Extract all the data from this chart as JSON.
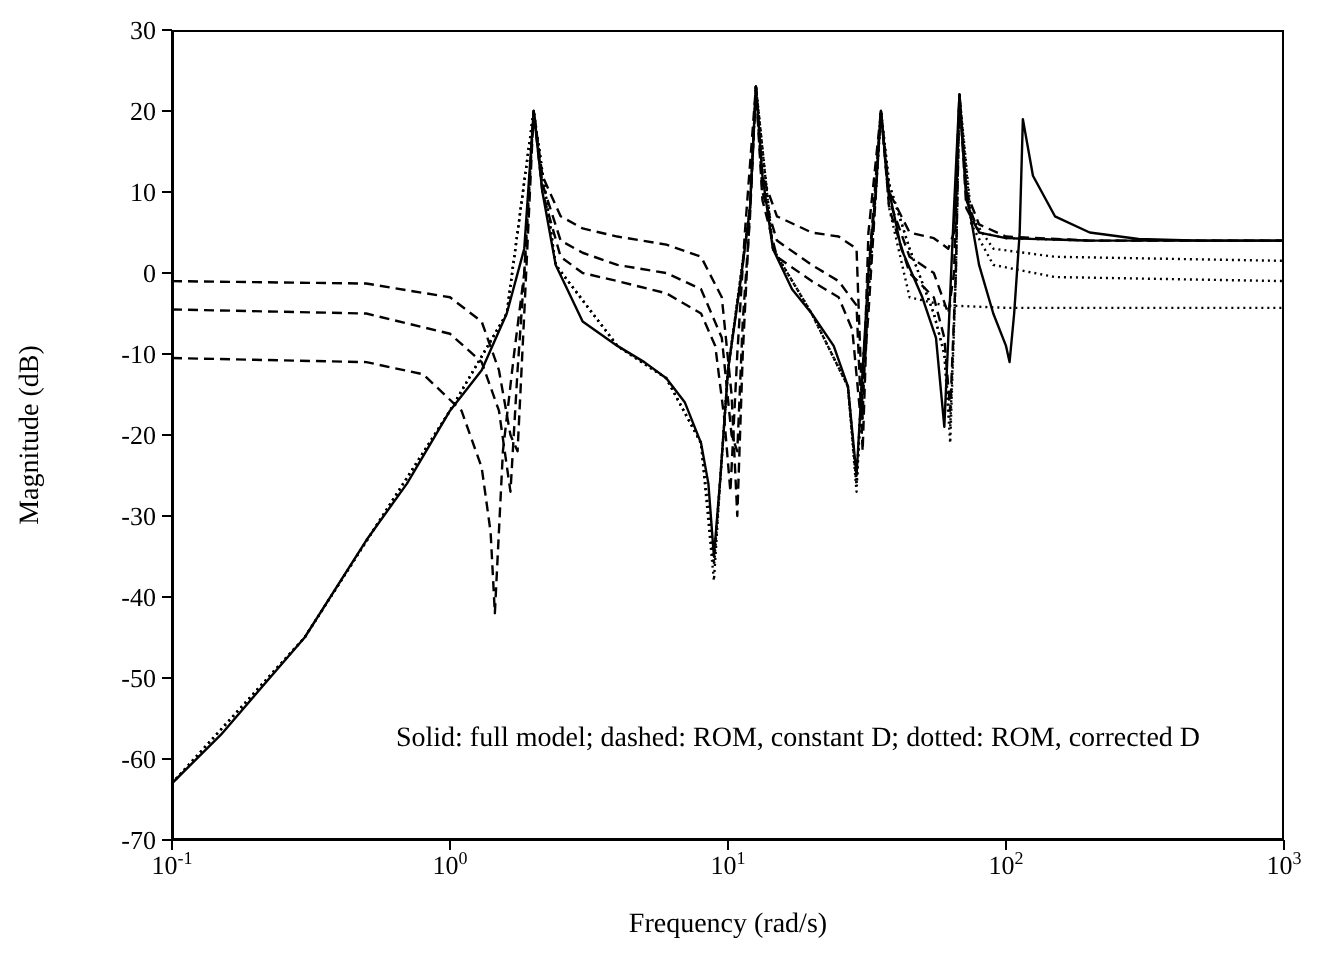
{
  "chart_data": {
    "type": "line",
    "xlabel": "Frequency (rad/s)",
    "ylabel": "Magnitude (dB)",
    "log": "x",
    "xlim": [
      0.1,
      1000
    ],
    "xticks": [
      {
        "value": 0.1,
        "label": "10$^{-1}$"
      },
      {
        "value": 1,
        "label": "10$^{0}$"
      },
      {
        "value": 10,
        "label": "10$^{1}$"
      },
      {
        "value": 100,
        "label": "10$^{2}$"
      },
      {
        "value": 1000,
        "label": "10$^{3}$"
      }
    ],
    "ylim": [
      -70,
      30
    ],
    "yticks": [
      -70,
      -60,
      -50,
      -40,
      -30,
      -20,
      -10,
      0,
      10,
      20,
      30
    ],
    "grid": false,
    "marker": "none",
    "annotations": [
      "Solid: full model; dashed: ROM, constant D; dotted: ROM, corrected D"
    ],
    "series": [
      {
        "line_style": "solid",
        "color": "#000000",
        "x": [
          0.1,
          0.15,
          0.2,
          0.3,
          0.5,
          0.7,
          1,
          1.3,
          1.6,
          1.85,
          2.0,
          2.15,
          2.4,
          3,
          4,
          5,
          6,
          7,
          8,
          8.5,
          8.9,
          9.4,
          10,
          11,
          12,
          12.6,
          13.3,
          14.5,
          17,
          20,
          24,
          27,
          29,
          30.5,
          32,
          34,
          35.5,
          37.5,
          42,
          50,
          56,
          60,
          62,
          65,
          68,
          72,
          80,
          90,
          100,
          103,
          107,
          112,
          115,
          125,
          150,
          200,
          300,
          500,
          1000
        ],
        "values": [
          -63,
          -57,
          -52,
          -45,
          -33,
          -26,
          -17,
          -12,
          -5,
          3,
          20,
          10,
          1,
          -6,
          -9,
          -11,
          -13,
          -16,
          -21,
          -26,
          -35,
          -25,
          -12,
          -2,
          8,
          23,
          12,
          3,
          -2,
          -5,
          -9,
          -14,
          -25,
          -12,
          0,
          10,
          20,
          11,
          3,
          -3,
          -8,
          -19,
          -8,
          8,
          22,
          10,
          1,
          -5,
          -9,
          -11,
          -5,
          5,
          19,
          12,
          7,
          5,
          4.2,
          4,
          4
        ]
      },
      {
        "line_style": "dashed",
        "color": "#000000",
        "x": [
          0.1,
          0.5,
          1,
          1.3,
          1.5,
          1.65,
          1.75,
          1.85,
          2.0,
          2.15,
          2.5,
          3,
          4,
          6,
          8,
          9.5,
          10.3,
          10.8,
          11.3,
          12,
          12.6,
          13.3,
          15,
          20,
          25,
          29,
          30.5,
          32,
          35.5,
          38,
          45,
          55,
          62,
          65,
          68,
          72,
          80,
          100,
          200,
          1000
        ],
        "values": [
          -1,
          -1.3,
          -3,
          -6,
          -12,
          -20,
          -22,
          -5,
          20,
          12,
          7,
          5.5,
          4.5,
          3.5,
          2,
          -3,
          -15,
          -30,
          -10,
          8,
          23,
          12,
          7,
          5,
          4.5,
          3,
          -18,
          5,
          20,
          10,
          5,
          4.3,
          3,
          5,
          22,
          10,
          6,
          4.5,
          4,
          4
        ]
      },
      {
        "line_style": "dashed",
        "color": "#000000",
        "x": [
          0.1,
          0.5,
          1,
          1.3,
          1.5,
          1.65,
          1.75,
          1.85,
          2.0,
          2.15,
          2.5,
          3,
          4,
          6,
          8,
          9.5,
          10.3,
          10.8,
          11.3,
          12,
          12.6,
          13.3,
          15,
          20,
          25,
          29,
          30.5,
          32,
          35.5,
          38,
          45,
          55,
          62,
          65,
          68,
          72,
          80,
          100,
          200,
          1000
        ],
        "values": [
          -4.5,
          -5,
          -7.5,
          -11,
          -17,
          -27,
          -12,
          0,
          20,
          11,
          4,
          2.5,
          1,
          0,
          -2,
          -8,
          -20,
          -22,
          -6,
          7,
          23,
          10,
          4,
          1,
          -1,
          -4,
          -22,
          0,
          20,
          9,
          2,
          0,
          -5,
          0,
          22,
          9,
          5,
          4.3,
          4,
          4
        ]
      },
      {
        "line_style": "dashed",
        "color": "#000000",
        "x": [
          0.1,
          0.5,
          0.8,
          1.1,
          1.3,
          1.4,
          1.45,
          1.55,
          1.7,
          1.85,
          2.0,
          2.15,
          2.5,
          3,
          4,
          6,
          8,
          9,
          9.7,
          10.2,
          10.8,
          11.5,
          12.6,
          13.3,
          15,
          20,
          25,
          28,
          30,
          32,
          35.5,
          38,
          45,
          55,
          60,
          63,
          66,
          68,
          72,
          80,
          100,
          200,
          1000
        ],
        "values": [
          -10.5,
          -11,
          -12.5,
          -17,
          -24,
          -32,
          -42,
          -22,
          -10,
          0,
          20,
          10,
          2,
          0,
          -1,
          -2.5,
          -5,
          -9,
          -18,
          -27,
          -10,
          5,
          23,
          9,
          2,
          -1,
          -3,
          -7,
          -18,
          -5,
          20,
          8,
          0,
          -3,
          -8,
          -17,
          0,
          22,
          8,
          5,
          4.3,
          4,
          4
        ]
      },
      {
        "line_style": "dotted",
        "color": "#000000",
        "x": [
          0.1,
          0.3,
          1,
          1.6,
          2.0,
          2.4,
          4,
          6,
          8,
          8.9,
          9.4,
          10,
          12,
          12.6,
          14.5,
          20,
          27,
          29,
          30.5,
          34,
          35.5,
          38,
          45,
          60,
          100,
          1000
        ],
        "values": [
          -63,
          -45,
          -17,
          -5,
          20,
          1,
          -9,
          -13,
          -21,
          -38,
          -25,
          -12,
          8,
          23,
          3,
          -5,
          -14,
          -27,
          -12,
          10,
          20,
          8,
          -3,
          -4,
          -4.3,
          -4.3
        ]
      },
      {
        "line_style": "dotted",
        "color": "#000000",
        "x": [
          0.1,
          0.3,
          1,
          1.6,
          2.0,
          2.4,
          4,
          6,
          8,
          8.9,
          9.4,
          10,
          12,
          12.6,
          14.5,
          20,
          27,
          29,
          30.5,
          34,
          35.5,
          38,
          45,
          55,
          60,
          63,
          66,
          68,
          75,
          90,
          150,
          1000
        ],
        "values": [
          -63,
          -45,
          -17,
          -5,
          20,
          1,
          -9,
          -13,
          -21,
          -36,
          -25,
          -12,
          8,
          23,
          3,
          -5,
          -14,
          -26,
          -12,
          10,
          20,
          11,
          3,
          -5,
          -10,
          -21,
          0,
          22,
          6,
          1,
          -0.5,
          -1
        ]
      },
      {
        "line_style": "dotted",
        "color": "#000000",
        "x": [
          0.1,
          0.3,
          1,
          1.6,
          2.0,
          2.4,
          4,
          6,
          8,
          8.9,
          9.4,
          10,
          12,
          12.6,
          14.5,
          20,
          27,
          29,
          30.5,
          34,
          35.5,
          38,
          45,
          55,
          60,
          63,
          66,
          68,
          75,
          90,
          150,
          1000
        ],
        "values": [
          -63,
          -45,
          -17,
          -5,
          20,
          1,
          -9,
          -13,
          -21,
          -36,
          -25,
          -12,
          8,
          23,
          3,
          -5,
          -14,
          -26,
          -12,
          10,
          20,
          11,
          3,
          -5,
          -10,
          -19,
          0,
          22,
          7,
          3,
          2,
          1.5
        ]
      }
    ]
  }
}
